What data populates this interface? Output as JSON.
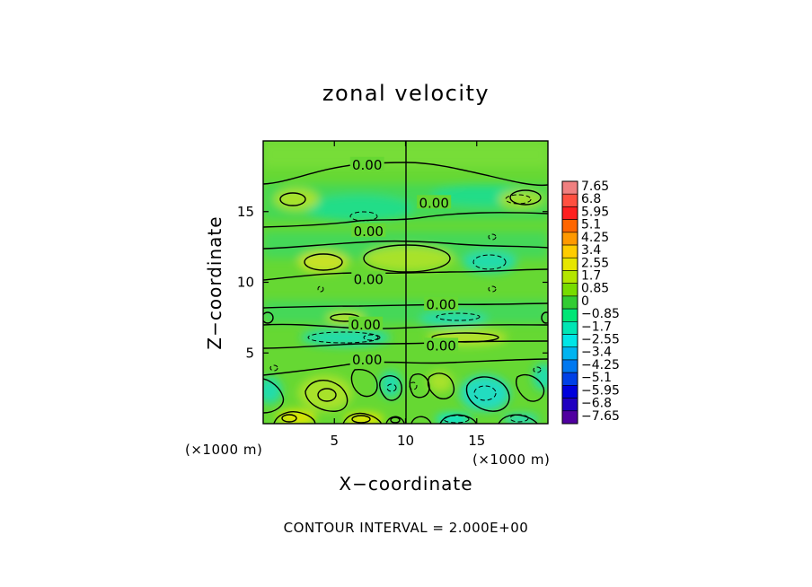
{
  "chart_data": {
    "type": "contour",
    "title": "zonal velocity",
    "xlabel": "X−coordinate",
    "ylabel": "Z−coordinate",
    "x_unit_left": "(×1000 m)",
    "x_unit_right": "(×1000 m)",
    "xlim": [
      0,
      20
    ],
    "ylim": [
      0,
      20
    ],
    "x_ticks": [
      {
        "value": 5,
        "label": "5"
      },
      {
        "value": 10,
        "label": "10"
      },
      {
        "value": 15,
        "label": "15"
      }
    ],
    "y_ticks": [
      {
        "value": 5,
        "label": "5"
      },
      {
        "value": 10,
        "label": "10"
      },
      {
        "value": 15,
        "label": "15"
      }
    ],
    "colorbar": {
      "levels": [
        "7.65",
        "6.8",
        "5.95",
        "5.1",
        "4.25",
        "3.4",
        "2.55",
        "1.7",
        "0.85",
        "0",
        "−0.85",
        "−1.7",
        "−2.55",
        "−3.4",
        "−4.25",
        "−5.1",
        "−5.95",
        "−6.8",
        "−7.65"
      ],
      "colors": [
        "#f08080",
        "#ff5040",
        "#ff2020",
        "#ff6600",
        "#ff9900",
        "#ffcc00",
        "#e6e600",
        "#b4e600",
        "#78dc00",
        "#33cc33",
        "#00e676",
        "#00e6b4",
        "#00e6e6",
        "#00b4f0",
        "#0078f0",
        "#0040e6",
        "#0000dc",
        "#2000c0",
        "#5000a0"
      ]
    },
    "contour_labels": [
      {
        "x": 7.3,
        "z": 18.3,
        "text": "0.00"
      },
      {
        "x": 12.0,
        "z": 15.6,
        "text": "0.00"
      },
      {
        "x": 7.4,
        "z": 13.6,
        "text": "0.00"
      },
      {
        "x": 7.4,
        "z": 10.2,
        "text": "0.00"
      },
      {
        "x": 12.5,
        "z": 8.4,
        "text": "0.00"
      },
      {
        "x": 7.2,
        "z": 7.0,
        "text": "0.00"
      },
      {
        "x": 12.5,
        "z": 5.5,
        "text": "0.00"
      },
      {
        "x": 7.3,
        "z": 4.5,
        "text": "0.00"
      }
    ],
    "contour_interval_text": "CONTOUR INTERVAL = 2.000E+00"
  }
}
